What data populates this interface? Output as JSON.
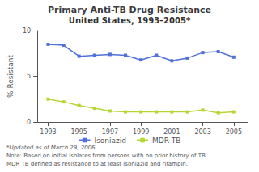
{
  "chart_data": {
    "type": "line",
    "title": "Primary Anti-TB Drug Resistance",
    "subtitle": "United States, 1993–2005*",
    "y_label": "% Resistant",
    "x": [
      1993,
      1994,
      1995,
      1996,
      1997,
      1998,
      1999,
      2000,
      2001,
      2002,
      2003,
      2004,
      2005
    ],
    "series": [
      {
        "name": "Isoniazid",
        "values": [
          8.5,
          8.4,
          7.2,
          7.3,
          7.4,
          7.3,
          6.8,
          7.3,
          6.7,
          7.0,
          7.6,
          7.7,
          7.1
        ]
      },
      {
        "name": "MDR TB",
        "values": [
          2.5,
          2.2,
          1.8,
          1.5,
          1.2,
          1.1,
          1.1,
          1.1,
          1.1,
          1.1,
          1.3,
          1.0,
          1.1
        ]
      }
    ],
    "xlim": [
      1992.3,
      2005.9
    ],
    "xticks": [
      1993,
      1995,
      1997,
      1999,
      2001,
      2003,
      2005
    ],
    "ylim": [
      0,
      10
    ],
    "yticks": [
      0,
      5,
      10
    ],
    "marker": "square",
    "grid": false,
    "legend": "bottom",
    "annotations": [
      "*Updated as of March 29, 2006.",
      "Note: Based on initial isolates from persons with no prior history of TB.",
      "MDR TB defined as resistance to at least isoniazid and rifampin."
    ]
  }
}
